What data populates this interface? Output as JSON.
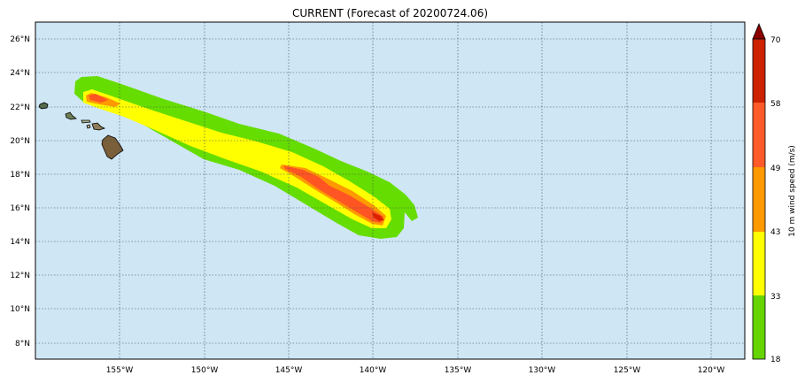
{
  "title": "CURRENT (Forecast of 20200724.06)",
  "map": {
    "lon_range": [
      -160,
      -118
    ],
    "lat_range": [
      7,
      27
    ],
    "lat_ticks": [
      "26°N",
      "24°N",
      "22°N",
      "20°N",
      "18°N",
      "16°N",
      "14°N",
      "12°N",
      "10°N",
      "8°N"
    ],
    "lon_ticks": [
      "155°W",
      "150°W",
      "145°W",
      "140°W",
      "135°W",
      "130°W",
      "125°W",
      "120°W"
    ],
    "ocean_color": "#cfe6f5",
    "grid": "dotted"
  },
  "colorbar": {
    "label": "10 m wind speed (m/s)",
    "ticks": [
      "18",
      "33",
      "43",
      "49",
      "58",
      "70"
    ],
    "colors": [
      "#66d400",
      "#ffff00",
      "#ff9900",
      "#ff5a2a",
      "#cc2200"
    ],
    "extend_color": "#8b0000"
  },
  "swath": {
    "colors": {
      "green": "#66dd00",
      "yellow": "#ffff00",
      "orange": "#ff9900",
      "red": "#ff5522",
      "dark": "#dd2200"
    }
  }
}
